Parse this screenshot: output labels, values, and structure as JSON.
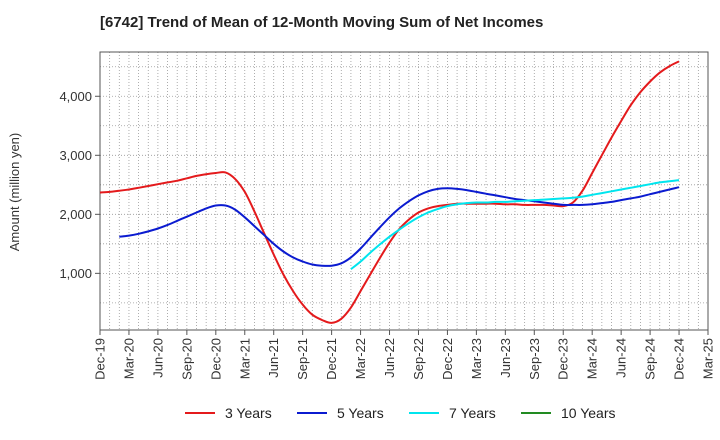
{
  "title": "[6742]  Trend of Mean of 12-Month Moving Sum of Net Incomes",
  "chart_data": {
    "type": "line",
    "title": "[6742]  Trend of Mean of 12-Month Moving Sum of Net Incomes",
    "xlabel": "",
    "ylabel": "Amount (million yen)",
    "ylim": [
      40,
      4750
    ],
    "yticks": [
      1000,
      2000,
      3000,
      4000
    ],
    "ytick_labels": [
      "1,000",
      "2,000",
      "3,000",
      "4,000"
    ],
    "xtick_labels": [
      "Dec-19",
      "Mar-20",
      "Jun-20",
      "Sep-20",
      "Dec-20",
      "Mar-21",
      "Jun-21",
      "Sep-21",
      "Dec-21",
      "Mar-22",
      "Jun-22",
      "Sep-22",
      "Dec-22",
      "Mar-23",
      "Jun-23",
      "Sep-23",
      "Dec-23",
      "Mar-24",
      "Jun-24",
      "Sep-24",
      "Dec-24",
      "Mar-25"
    ],
    "x_start": "Dec-19",
    "x_end": "Mar-25",
    "grid": true,
    "legend_position": "bottom",
    "series": [
      {
        "name": "3 Years",
        "color": "#e41a1c",
        "points": [
          [
            "Dec-19",
            2370
          ],
          [
            "Jan-20",
            2380
          ],
          [
            "Feb-20",
            2400
          ],
          [
            "Mar-20",
            2420
          ],
          [
            "Apr-20",
            2450
          ],
          [
            "May-20",
            2480
          ],
          [
            "Jun-20",
            2510
          ],
          [
            "Jul-20",
            2540
          ],
          [
            "Aug-20",
            2570
          ],
          [
            "Sep-20",
            2610
          ],
          [
            "Oct-20",
            2650
          ],
          [
            "Nov-20",
            2680
          ],
          [
            "Dec-20",
            2700
          ],
          [
            "Jan-21",
            2710
          ],
          [
            "Feb-21",
            2600
          ],
          [
            "Mar-21",
            2380
          ],
          [
            "Apr-21",
            2050
          ],
          [
            "May-21",
            1680
          ],
          [
            "Jun-21",
            1320
          ],
          [
            "Jul-21",
            980
          ],
          [
            "Aug-21",
            700
          ],
          [
            "Sep-21",
            470
          ],
          [
            "Oct-21",
            300
          ],
          [
            "Nov-21",
            210
          ],
          [
            "Dec-21",
            160
          ],
          [
            "Jan-22",
            230
          ],
          [
            "Feb-22",
            420
          ],
          [
            "Mar-22",
            700
          ],
          [
            "Apr-22",
            980
          ],
          [
            "May-22",
            1260
          ],
          [
            "Jun-22",
            1520
          ],
          [
            "Jul-22",
            1750
          ],
          [
            "Aug-22",
            1910
          ],
          [
            "Sep-22",
            2030
          ],
          [
            "Oct-22",
            2100
          ],
          [
            "Nov-22",
            2140
          ],
          [
            "Dec-22",
            2160
          ],
          [
            "Jan-23",
            2180
          ],
          [
            "Feb-23",
            2180
          ],
          [
            "Mar-23",
            2180
          ],
          [
            "Apr-23",
            2180
          ],
          [
            "May-23",
            2180
          ],
          [
            "Jun-23",
            2170
          ],
          [
            "Jul-23",
            2170
          ],
          [
            "Aug-23",
            2160
          ],
          [
            "Sep-23",
            2160
          ],
          [
            "Oct-23",
            2160
          ],
          [
            "Nov-23",
            2150
          ],
          [
            "Dec-23",
            2140
          ],
          [
            "Jan-24",
            2200
          ],
          [
            "Feb-24",
            2400
          ],
          [
            "Mar-24",
            2700
          ],
          [
            "Apr-24",
            3000
          ],
          [
            "May-24",
            3300
          ],
          [
            "Jun-24",
            3580
          ],
          [
            "Jul-24",
            3850
          ],
          [
            "Aug-24",
            4070
          ],
          [
            "Sep-24",
            4250
          ],
          [
            "Oct-24",
            4400
          ],
          [
            "Nov-24",
            4510
          ],
          [
            "Dec-24",
            4590
          ]
        ]
      },
      {
        "name": "5 Years",
        "color": "#0b1bd0",
        "points": [
          [
            "Feb-20",
            1620
          ],
          [
            "Mar-20",
            1640
          ],
          [
            "Apr-20",
            1670
          ],
          [
            "May-20",
            1710
          ],
          [
            "Jun-20",
            1760
          ],
          [
            "Jul-20",
            1820
          ],
          [
            "Aug-20",
            1890
          ],
          [
            "Sep-20",
            1960
          ],
          [
            "Oct-20",
            2030
          ],
          [
            "Nov-20",
            2100
          ],
          [
            "Dec-20",
            2150
          ],
          [
            "Jan-21",
            2150
          ],
          [
            "Feb-21",
            2080
          ],
          [
            "Mar-21",
            1950
          ],
          [
            "Apr-21",
            1800
          ],
          [
            "May-21",
            1650
          ],
          [
            "Jun-21",
            1500
          ],
          [
            "Jul-21",
            1370
          ],
          [
            "Aug-21",
            1270
          ],
          [
            "Sep-21",
            1200
          ],
          [
            "Oct-21",
            1150
          ],
          [
            "Nov-21",
            1130
          ],
          [
            "Dec-21",
            1130
          ],
          [
            "Jan-22",
            1170
          ],
          [
            "Feb-22",
            1270
          ],
          [
            "Mar-22",
            1420
          ],
          [
            "Apr-22",
            1600
          ],
          [
            "May-22",
            1780
          ],
          [
            "Jun-22",
            1950
          ],
          [
            "Jul-22",
            2100
          ],
          [
            "Aug-22",
            2220
          ],
          [
            "Sep-22",
            2320
          ],
          [
            "Oct-22",
            2390
          ],
          [
            "Nov-22",
            2430
          ],
          [
            "Dec-22",
            2440
          ],
          [
            "Jan-23",
            2430
          ],
          [
            "Feb-23",
            2410
          ],
          [
            "Mar-23",
            2380
          ],
          [
            "Apr-23",
            2350
          ],
          [
            "May-23",
            2320
          ],
          [
            "Jun-23",
            2290
          ],
          [
            "Jul-23",
            2260
          ],
          [
            "Aug-23",
            2240
          ],
          [
            "Sep-23",
            2220
          ],
          [
            "Oct-23",
            2200
          ],
          [
            "Nov-23",
            2180
          ],
          [
            "Dec-23",
            2160
          ],
          [
            "Jan-24",
            2160
          ],
          [
            "Feb-24",
            2160
          ],
          [
            "Mar-24",
            2170
          ],
          [
            "Apr-24",
            2190
          ],
          [
            "May-24",
            2210
          ],
          [
            "Jun-24",
            2240
          ],
          [
            "Jul-24",
            2270
          ],
          [
            "Aug-24",
            2300
          ],
          [
            "Sep-24",
            2340
          ],
          [
            "Oct-24",
            2380
          ],
          [
            "Nov-24",
            2420
          ],
          [
            "Dec-24",
            2460
          ]
        ]
      },
      {
        "name": "7 Years",
        "color": "#00e5ee",
        "points": [
          [
            "Feb-22",
            1070
          ],
          [
            "Mar-22",
            1200
          ],
          [
            "Apr-22",
            1350
          ],
          [
            "May-22",
            1490
          ],
          [
            "Jun-22",
            1620
          ],
          [
            "Jul-22",
            1740
          ],
          [
            "Aug-22",
            1850
          ],
          [
            "Sep-22",
            1950
          ],
          [
            "Oct-22",
            2030
          ],
          [
            "Nov-22",
            2090
          ],
          [
            "Dec-22",
            2140
          ],
          [
            "Jan-23",
            2170
          ],
          [
            "Feb-23",
            2190
          ],
          [
            "Mar-23",
            2200
          ],
          [
            "Apr-23",
            2200
          ],
          [
            "May-23",
            2210
          ],
          [
            "Jun-23",
            2210
          ],
          [
            "Jul-23",
            2220
          ],
          [
            "Aug-23",
            2230
          ],
          [
            "Sep-23",
            2240
          ],
          [
            "Oct-23",
            2250
          ],
          [
            "Nov-23",
            2260
          ],
          [
            "Dec-23",
            2270
          ],
          [
            "Jan-24",
            2280
          ],
          [
            "Feb-24",
            2300
          ],
          [
            "Mar-24",
            2330
          ],
          [
            "Apr-24",
            2360
          ],
          [
            "May-24",
            2390
          ],
          [
            "Jun-24",
            2420
          ],
          [
            "Jul-24",
            2450
          ],
          [
            "Aug-24",
            2480
          ],
          [
            "Sep-24",
            2510
          ],
          [
            "Oct-24",
            2540
          ],
          [
            "Nov-24",
            2560
          ],
          [
            "Dec-24",
            2580
          ]
        ]
      },
      {
        "name": "10 Years",
        "color": "#228b22",
        "points": []
      }
    ]
  }
}
